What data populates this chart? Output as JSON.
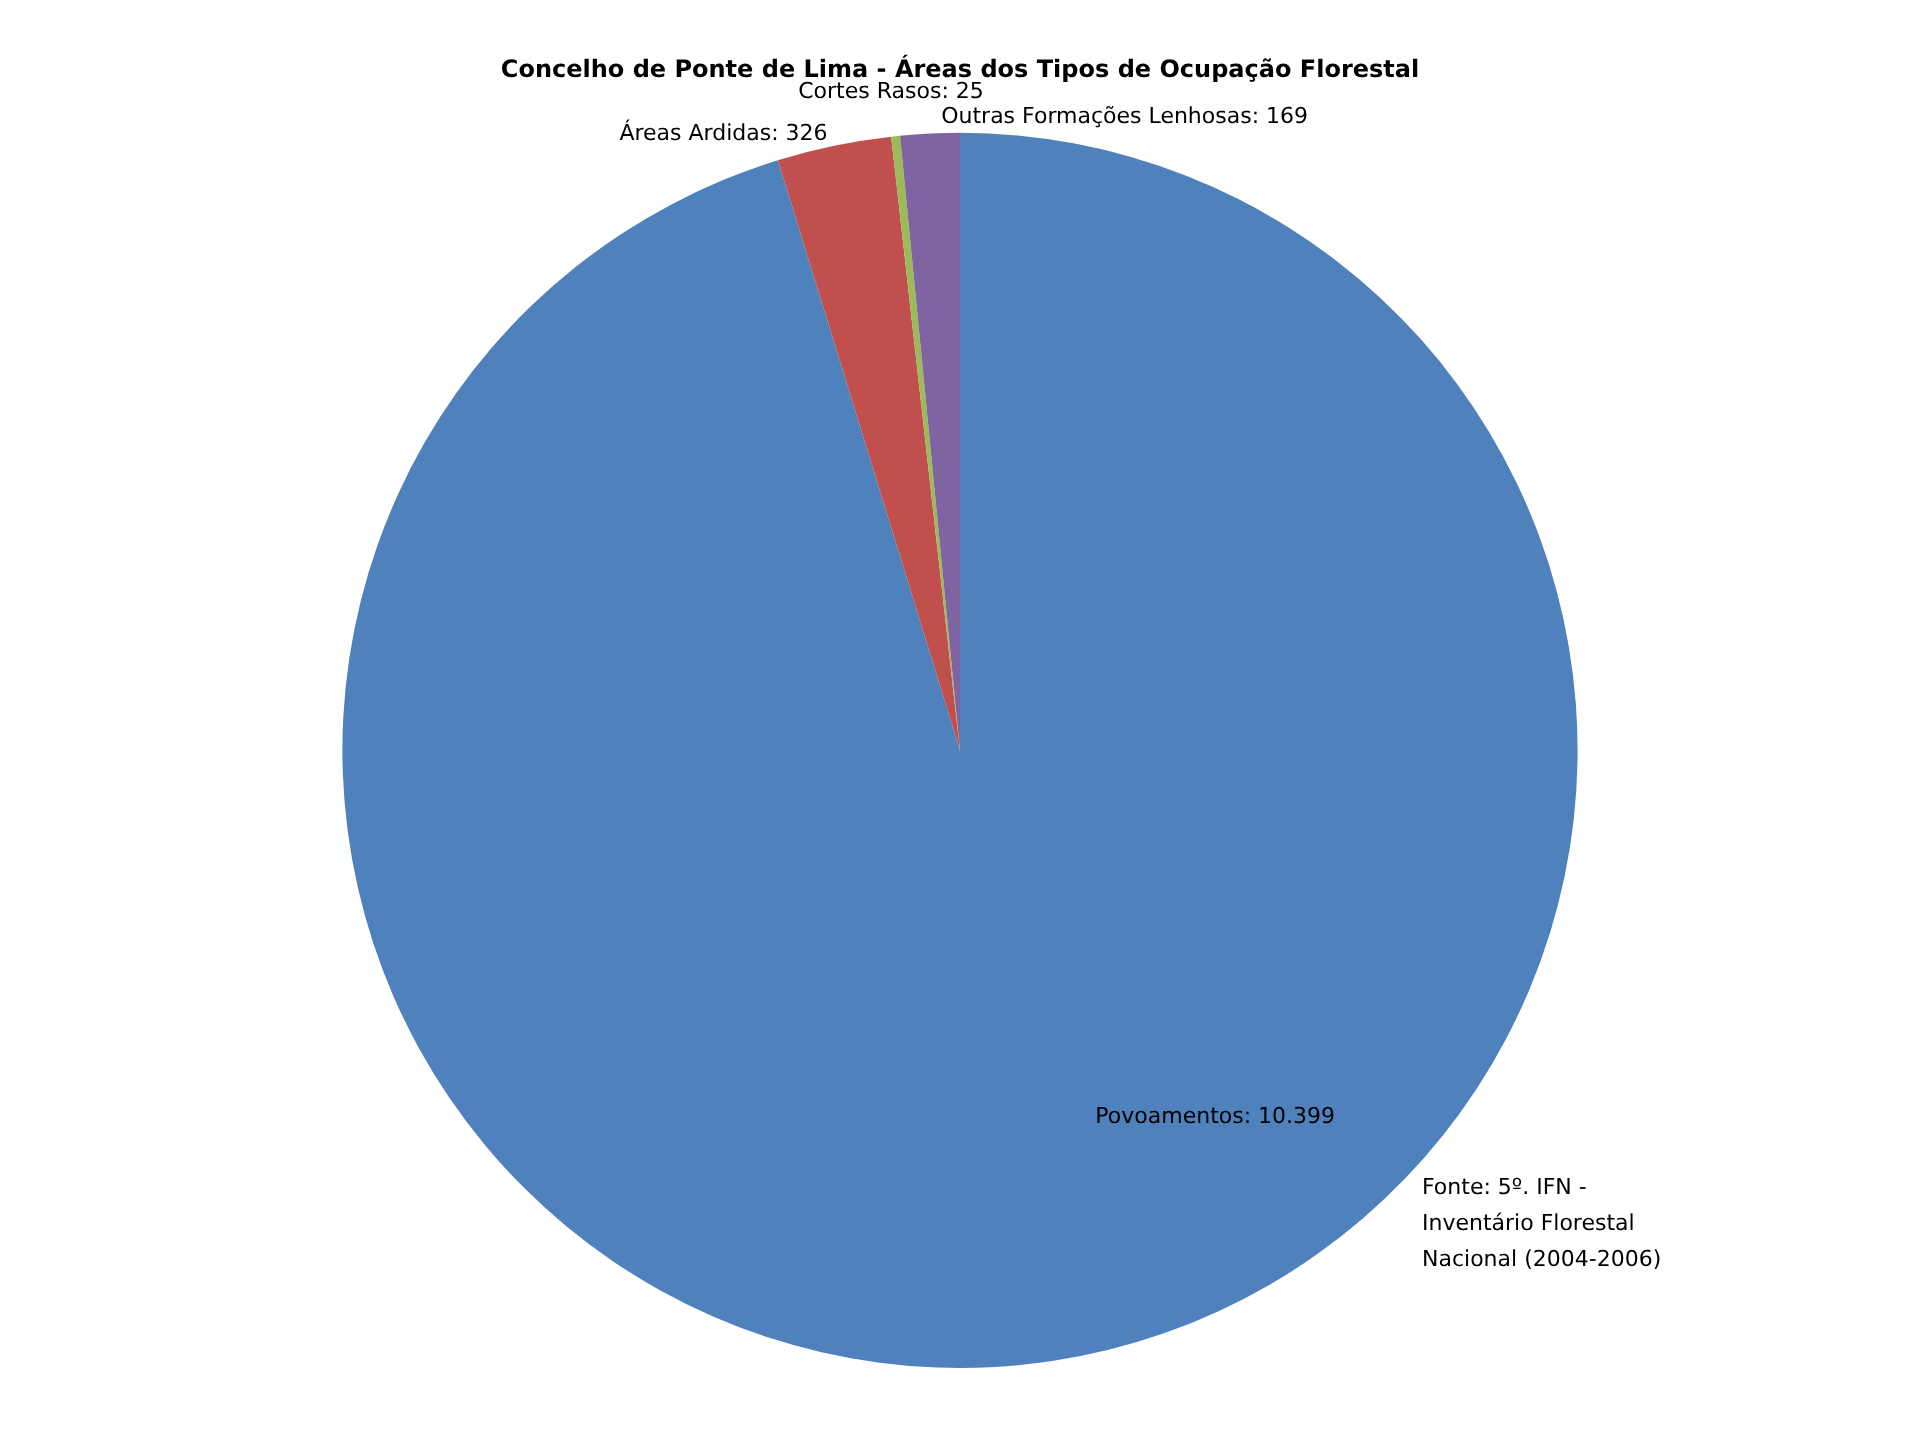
{
  "chart_data": {
    "type": "pie",
    "title": "Concelho de Ponte de Lima - Áreas dos Tipos de Ocupação Florestal",
    "categories": [
      "Povoamentos",
      "Áreas Ardidas",
      "Cortes Rasos",
      "Outras Formações Lenhosas"
    ],
    "values": [
      10399,
      326,
      25,
      169
    ],
    "value_labels": [
      "10.399",
      "326",
      "25",
      "169"
    ],
    "colors": [
      "#4f81bd",
      "#c0504d",
      "#9bbb59",
      "#8064a2"
    ],
    "annotations": [
      "Fonte: 5º. IFN - Inventário Florestal Nacional (2004-2006)"
    ],
    "legend": false
  }
}
